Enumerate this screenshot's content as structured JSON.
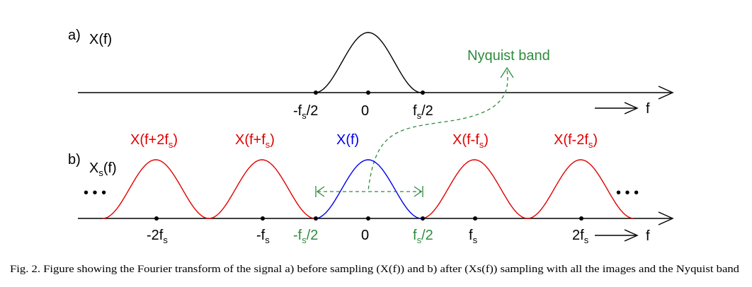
{
  "panel_a": {
    "label": "a)",
    "func_main": "X(f)",
    "ticks": {
      "neg_half_main": "-f",
      "neg_half_sub": "s",
      "neg_half_tail": "/2",
      "zero": "0",
      "pos_half_main": "f",
      "pos_half_sub": "s",
      "pos_half_tail": "/2"
    },
    "f_axis_label": "f"
  },
  "nyquist": {
    "label": "Nyquist band"
  },
  "panel_b": {
    "label": "b)",
    "func_main": "X",
    "func_sub": "s",
    "func_tail": "(f)",
    "dots": "• • •",
    "images": [
      {
        "main": "X(f+2f",
        "sub": "s",
        "tail": ")",
        "color": "#e00000"
      },
      {
        "main": "X(f+f",
        "sub": "s",
        "tail": ")",
        "color": "#e00000"
      },
      {
        "main": "X(f)",
        "sub": "",
        "tail": "",
        "color": "#0000ee"
      },
      {
        "main": "X(f-f",
        "sub": "s",
        "tail": ")",
        "color": "#e00000"
      },
      {
        "main": "X(f-2f",
        "sub": "s",
        "tail": ")",
        "color": "#e00000"
      }
    ],
    "ticks": {
      "neg_two_main": "-2f",
      "neg_two_sub": "s",
      "neg_one_main": "-f",
      "neg_one_sub": "s",
      "neg_half_main": "-f",
      "neg_half_sub": "s",
      "neg_half_tail": "/2",
      "zero": "0",
      "pos_half_main": "f",
      "pos_half_sub": "s",
      "pos_half_tail": "/2",
      "pos_one_main": "f",
      "pos_one_sub": "s",
      "pos_two_main": "2f",
      "pos_two_sub": "s"
    },
    "f_axis_label": "f"
  },
  "caption": "Fig. 2.   Figure showing the Fourier transform of the signal a) before sampling (X(f)) and b) after (Xs(f)) sampling with all the images and the Nyquist band",
  "colors": {
    "image": "#e00000",
    "baseband": "#0000ee",
    "nyquist": "#2e8b3e",
    "axis": "#000000"
  }
}
